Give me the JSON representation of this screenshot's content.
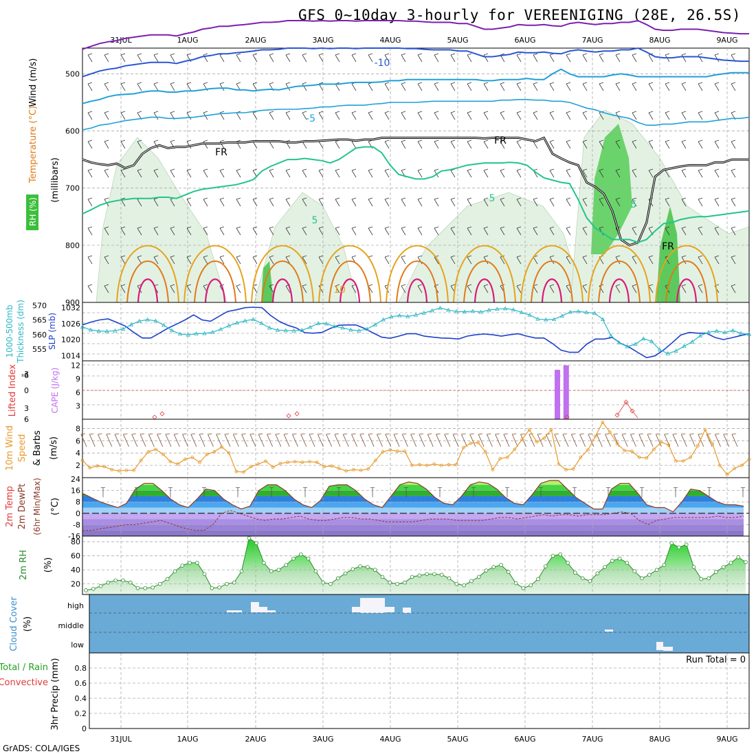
{
  "title": "GFS 0~10day 3-hourly for VEREENIGING (28E, 26.5S)",
  "credit": "GrADS: COLA/IGES",
  "run_total_label": "Run Total = 0",
  "colors": {
    "temp_cold": "#7a1fb0",
    "temp_blue": "#2a56d6",
    "temp_lightblue": "#1fa0d8",
    "freezing": "#000000",
    "temp_green": "#21c58a",
    "temp_orange": "#e7a21c",
    "temp_darkorange": "#e07a18",
    "temp_magenta": "#d81b78",
    "slp": "#1c3fcc",
    "thickness": "#2ab7c4",
    "cape": "#c070f0",
    "lifted_index": "#e03a3a",
    "wind_speed": "#e8992a",
    "barbs": "#7a4a2a",
    "rh_line": "#2a8a2a",
    "cloud_bg": "#6aaad6",
    "cloud_white": "#f4f4fa",
    "grid": "#aaaaaa"
  },
  "chart_data": [
    {
      "panel": "upper-air",
      "type": "contour",
      "ylabel_top": "Wind (m/s)",
      "ylabel_temp": "Temperature (°C)",
      "ylabel_rh": "RH (%)",
      "ylabel_units": "(millibars)",
      "x_tick_labels": [
        "31JUL",
        "1AUG",
        "2AUG",
        "3AUG",
        "4AUG",
        "5AUG",
        "6AUG",
        "7AUG",
        "8AUG",
        "9AUG"
      ],
      "y_ticks": [
        500,
        600,
        700,
        800,
        900
      ],
      "ylim": [
        900,
        455
      ],
      "contour_labels": [
        "-10",
        "-5",
        "FR",
        "FR",
        "FR",
        "5",
        "5",
        "5",
        "10"
      ],
      "freezing_level_mb": [
        650,
        655,
        658,
        660,
        657,
        665,
        660,
        640,
        630,
        625,
        630,
        628,
        628,
        625,
        622,
        622,
        622,
        620,
        620,
        620,
        618,
        618,
        618,
        618,
        620,
        620,
        618,
        618,
        617,
        616,
        615,
        615,
        617,
        615,
        615,
        612,
        612,
        612,
        612,
        612,
        612,
        612,
        612,
        612,
        612,
        612,
        612,
        613,
        612,
        612,
        612,
        612,
        615,
        618,
        612,
        640,
        648,
        655,
        660,
        690,
        698,
        710,
        740,
        790,
        800,
        795,
        760,
        680,
        668,
        665,
        662,
        660,
        660,
        660,
        655,
        655,
        650,
        650,
        650
      ],
      "isotherm_minus10_mb": [
        505,
        500,
        495,
        492,
        490,
        486,
        484,
        482,
        480,
        480,
        480,
        482,
        478,
        475,
        470,
        468,
        465,
        465,
        463,
        462,
        460,
        458,
        458,
        457,
        455,
        455,
        455,
        456,
        455,
        456,
        455,
        455,
        456,
        455,
        455,
        455,
        455,
        455,
        456,
        456,
        457,
        458,
        458,
        458,
        460,
        460,
        465,
        470,
        470,
        468,
        466,
        462,
        463,
        463,
        462,
        464,
        465,
        460,
        458,
        460,
        462,
        460,
        460,
        458,
        458,
        455,
        462,
        470,
        472,
        472,
        470,
        470,
        470,
        472,
        474,
        476,
        477,
        478,
        478
      ],
      "isotherm_minus5_mb": [
        552,
        548,
        545,
        540,
        537,
        536,
        535,
        532,
        530,
        530,
        532,
        532,
        530,
        530,
        528,
        526,
        525,
        525,
        528,
        528,
        530,
        528,
        527,
        528,
        525,
        522,
        521,
        520,
        518,
        518,
        518,
        516,
        515,
        515,
        515,
        514,
        512,
        512,
        510,
        510,
        510,
        510,
        510,
        510,
        510,
        510,
        510,
        512,
        512,
        510,
        510,
        510,
        508,
        510,
        510,
        500,
        492,
        500,
        505,
        505,
        505,
        505,
        502,
        500,
        502,
        505,
        505,
        505,
        505,
        505,
        505,
        505,
        505,
        505,
        502,
        500,
        498,
        498,
        498
      ],
      "isotherm_0_mb": [
        598,
        595,
        590,
        588,
        585,
        582,
        580,
        578,
        576,
        576,
        578,
        578,
        577,
        576,
        574,
        572,
        570,
        569,
        568,
        568,
        566,
        564,
        563,
        562,
        562,
        562,
        561,
        560,
        558,
        558,
        556,
        555,
        555,
        555,
        553,
        552,
        550,
        550,
        550,
        550,
        549,
        548,
        548,
        548,
        548,
        548,
        548,
        548,
        548,
        546,
        546,
        545,
        545,
        546,
        546,
        548,
        548,
        550,
        555,
        560,
        563,
        568,
        572,
        575,
        578,
        585,
        590,
        590,
        588,
        588,
        586,
        584,
        584,
        584,
        582,
        580,
        578,
        578,
        576
      ],
      "isotherm_5_mb": [
        745,
        738,
        730,
        725,
        722,
        720,
        718,
        718,
        718,
        716,
        716,
        718,
        712,
        706,
        702,
        700,
        698,
        696,
        694,
        690,
        685,
        670,
        662,
        656,
        650,
        650,
        648,
        650,
        652,
        656,
        650,
        640,
        630,
        628,
        628,
        638,
        660,
        676,
        680,
        684,
        684,
        680,
        670,
        668,
        664,
        660,
        658,
        656,
        656,
        656,
        655,
        656,
        660,
        672,
        682,
        686,
        690,
        692,
        720,
        752,
        770,
        780,
        790,
        790,
        790,
        795,
        790,
        775,
        762,
        760,
        755,
        752,
        750,
        750,
        748,
        746,
        744,
        742,
        740
      ],
      "rh_shading_note": "RH shading green levels",
      "ylabel_wind_color": "#000"
    },
    {
      "panel": "slp-thickness",
      "type": "line",
      "ylabel_left": "1000-500mb Thickness (dm)",
      "ylabel_right": "SLP (mb)",
      "y_ticks_thickness": [
        555,
        560,
        565,
        570
      ],
      "y_ticks_slp": [
        1014,
        1020,
        1026,
        1032
      ],
      "ylim_thickness": [
        551,
        571
      ],
      "ylim_slp": [
        1012,
        1034
      ],
      "series": [
        {
          "name": "SLP (mb)",
          "values": [
            1025.5,
            1026.6,
            1027.4,
            1027.8,
            1026.5,
            1025.1,
            1022.7,
            1020.6,
            1020.6,
            1022.4,
            1024.3,
            1025.8,
            1027.4,
            1029.3,
            1027.4,
            1026.9,
            1028.8,
            1030.6,
            1031.2,
            1032.0,
            1032.2,
            1032.0,
            1029.1,
            1026.9,
            1025.4,
            1024.4,
            1022.6,
            1022.4,
            1022.7,
            1024.2,
            1025.4,
            1025.5,
            1025.5,
            1024.2,
            1022.5,
            1020.9,
            1020.5,
            1021.3,
            1022.2,
            1022.2,
            1021.3,
            1020.9,
            1020.6,
            1020.5,
            1020.2,
            1021.3,
            1021.8,
            1022.1,
            1021.8,
            1021.3,
            1021.8,
            1022.2,
            1021.3,
            1020.6,
            1020.6,
            1018.5,
            1016.0,
            1015.2,
            1015.2,
            1018.3,
            1020.2,
            1020.2,
            1020.8,
            1018.5,
            1017.1,
            1015.1,
            1013.2,
            1013.9,
            1016.1,
            1018.8,
            1021.7,
            1022.7,
            1022.4,
            1022.4,
            1020.8,
            1020.0,
            1020.7,
            1021.5,
            1022.2
          ]
        },
        {
          "name": "1000-500mb Thickness (dm)",
          "values": [
            562.6,
            561.6,
            561.2,
            561.1,
            561.3,
            561.9,
            563.4,
            564.6,
            565.1,
            564.7,
            563.2,
            561.4,
            560.2,
            559.9,
            560.3,
            560.4,
            560.8,
            561.8,
            563.0,
            564.0,
            564.7,
            565.2,
            563.9,
            562.3,
            561.5,
            561.4,
            561.3,
            561.5,
            562.5,
            563.8,
            563.7,
            562.8,
            562.3,
            561.6,
            561.3,
            561.9,
            563.4,
            565.1,
            566.1,
            566.5,
            566.2,
            566.7,
            567.4,
            568.2,
            569.1,
            568.4,
            567.9,
            567.8,
            568.0,
            567.7,
            568.4,
            568.7,
            568.9,
            568.5,
            567.6,
            566.7,
            565.3,
            565.1,
            565.2,
            566.4,
            567.7,
            567.9,
            567.6,
            567.3,
            565.2,
            559.6,
            557.2,
            555.9,
            556.7,
            558.6,
            557.7,
            554.8,
            553.5,
            554.4,
            556.0,
            557.5,
            559.6,
            560.8,
            561.2,
            560.7,
            561.4,
            560.4,
            560.1
          ]
        }
      ]
    },
    {
      "panel": "cape-li",
      "type": "bar",
      "ylabel_left": "Lifted Index",
      "ylabel_right": "CAPE (J/kg)",
      "y_ticks_li": [
        "-6",
        "-3",
        "0",
        "3",
        "6"
      ],
      "y_ticks_cape": [
        3,
        6,
        9,
        12
      ],
      "cape_bars": [
        {
          "day_offset": 7.47,
          "value": 11.0
        },
        {
          "day_offset": 7.6,
          "value": 12.0
        }
      ],
      "li_markers_note": "red diamonds near bottom"
    },
    {
      "panel": "wind10m",
      "type": "line",
      "ylabel": "10m Wind Speed & Barbs (m/s)",
      "y_ticks": [
        2,
        4,
        6,
        8
      ],
      "ylim": [
        0,
        9.5
      ],
      "series": [
        {
          "name": "10m Wind Speed",
          "values": [
            2.8,
            1.6,
            1.9,
            1.8,
            1.3,
            1.1,
            1.2,
            1.2,
            2.8,
            4.2,
            4.6,
            3.8,
            2.6,
            2.2,
            3.0,
            3.3,
            2.5,
            3.8,
            4.2,
            5.0,
            4.0,
            1.0,
            0.9,
            1.8,
            2.2,
            2.7,
            1.7,
            2.3,
            2.5,
            2.6,
            2.5,
            2.6,
            2.5,
            1.8,
            1.9,
            1.5,
            1.1,
            1.3,
            1.2,
            1.4,
            2.8,
            4.2,
            4.5,
            4.3,
            4.3,
            2.0,
            2.1,
            2.0,
            2.2,
            2.0,
            2.1,
            2.1,
            4.9,
            5.6,
            5.7,
            4.2,
            1.3,
            3.1,
            3.3,
            4.6,
            6.2,
            7.8,
            5.8,
            6.4,
            7.8,
            2.2,
            1.3,
            1.4,
            3.3,
            4.5,
            6.7,
            9.0,
            7.4,
            5.5,
            4.4,
            4.3,
            3.3,
            3.2,
            4.6,
            5.8,
            5.3,
            2.7,
            2.7,
            3.3,
            5.2,
            7.8,
            5.5,
            2.0,
            0.5,
            1.5,
            2.0,
            3.0
          ]
        }
      ]
    },
    {
      "panel": "temp2m",
      "type": "area",
      "ylabel": "2m Temp 2m DewPt (6hr Min/Max) (°C)",
      "y_ticks": [
        "24",
        "16",
        "8",
        "0",
        "-8",
        "-16"
      ],
      "ylim": [
        -16,
        25
      ],
      "series": [
        {
          "name": "2m Temp",
          "values": [
            14,
            11,
            8,
            6,
            4,
            7,
            17,
            21,
            21,
            16,
            10,
            6,
            4,
            10,
            17,
            16,
            10,
            6,
            3,
            5,
            16,
            20,
            20,
            16,
            10,
            6,
            4,
            9,
            19,
            20,
            20,
            16,
            10,
            6,
            4,
            12,
            20,
            22,
            21,
            17,
            11,
            7,
            6,
            12,
            20,
            22,
            21,
            17,
            11,
            7,
            6,
            13,
            21,
            23,
            23,
            17,
            11,
            7,
            3,
            3,
            17,
            21,
            21,
            14,
            6,
            4,
            4,
            1,
            8,
            17,
            16,
            12,
            8,
            6,
            6,
            5
          ]
        },
        {
          "name": "2m DewPt",
          "values": [
            -12,
            -12,
            -11,
            -10,
            -9,
            -8,
            -8,
            -7,
            -6,
            -5,
            -7,
            -9,
            -11,
            -12,
            -12,
            -8,
            0,
            2,
            0,
            -2,
            -4,
            -5,
            -4,
            -4,
            -3,
            -2,
            -4,
            -5,
            -5,
            -4,
            -3,
            -3,
            -4,
            -4,
            -5,
            -6,
            -6,
            -6,
            -6,
            -5,
            -4,
            -4,
            -4,
            -5,
            -5,
            -5,
            -5,
            -4,
            -3,
            -3,
            -4,
            -3,
            -2,
            -1,
            -2,
            -1,
            -1,
            -2,
            -1,
            -1,
            -1,
            0,
            1,
            0,
            -5,
            -8,
            -5,
            -4,
            -3,
            -3,
            -3,
            -3,
            -3,
            -2,
            -3,
            -3,
            -2
          ]
        }
      ]
    },
    {
      "panel": "rh2m",
      "type": "area",
      "ylabel": "2m RH (%)",
      "y_ticks": [
        20,
        40,
        60,
        80
      ],
      "ylim": [
        5,
        88
      ],
      "series": [
        {
          "name": "2m RH",
          "values": [
            11,
            13,
            17,
            22,
            25,
            25,
            22,
            14,
            14,
            15,
            20,
            27,
            38,
            46,
            50,
            50,
            34,
            14,
            15,
            20,
            22,
            38,
            85,
            78,
            50,
            38,
            40,
            47,
            56,
            62,
            56,
            38,
            22,
            20,
            28,
            35,
            41,
            45,
            44,
            40,
            30,
            22,
            20,
            22,
            30,
            32,
            34,
            34,
            33,
            28,
            20,
            18,
            24,
            30,
            39,
            44,
            47,
            37,
            21,
            14,
            18,
            27,
            45,
            60,
            62,
            50,
            36,
            28,
            24,
            35,
            44,
            53,
            56,
            50,
            38,
            28,
            33,
            40,
            47,
            78,
            72,
            76,
            44,
            27,
            28,
            37,
            44,
            50,
            58,
            51
          ]
        }
      ]
    },
    {
      "panel": "cloud",
      "type": "bar",
      "ylabel": "Cloud Cover (%)",
      "y_ticks": [
        "high",
        "middle",
        "low"
      ]
    },
    {
      "panel": "precip",
      "type": "bar",
      "ylabel_top": "Total / Rain",
      "ylabel_red": "Convective",
      "ylabel_bottom": "3hr Precip (mm)",
      "y_ticks": [
        "0",
        "0.2",
        "0.4",
        "0.6",
        "0.8"
      ],
      "ylim": [
        0,
        1.0
      ]
    }
  ]
}
